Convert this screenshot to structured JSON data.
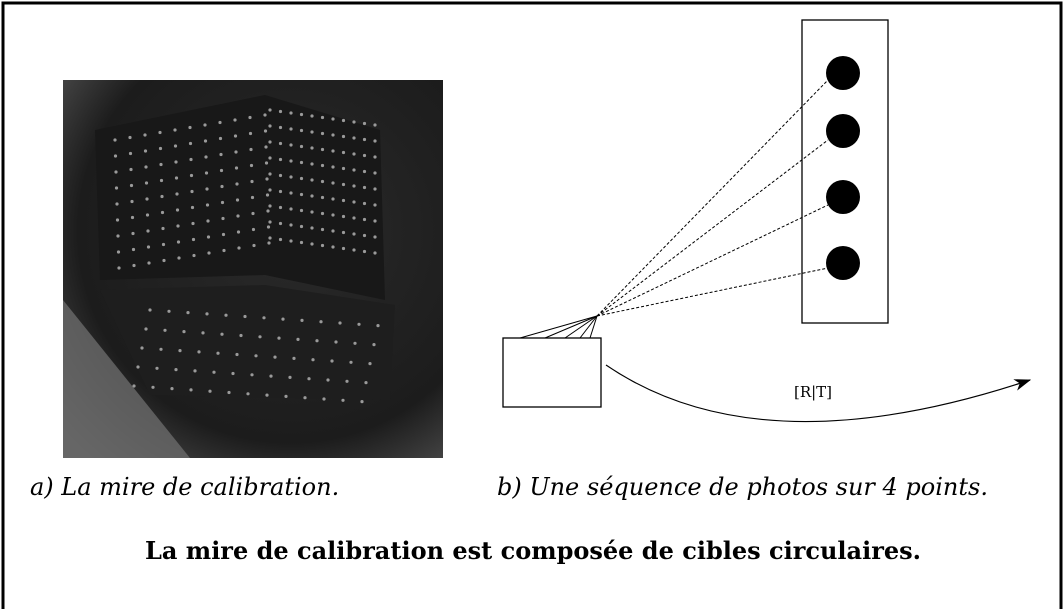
{
  "subfigures": [
    {
      "caption": "a) La mire de calibration."
    },
    {
      "caption": "b) Une séquence de photos sur 4 points.",
      "transform_label": "[R|T]"
    }
  ],
  "caption": "La mire de calibration est composée de cibles circulaires."
}
